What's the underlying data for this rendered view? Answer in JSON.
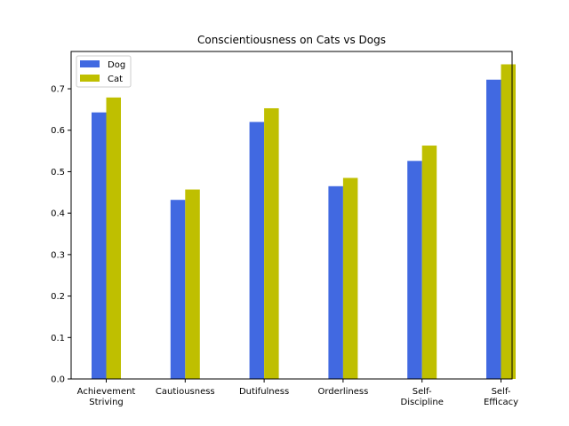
{
  "chart_data": {
    "type": "bar",
    "title": "Conscientiousness on Cats vs Dogs",
    "xlabel": "",
    "ylabel": "",
    "categories": [
      [
        "Achievement",
        "Striving"
      ],
      [
        "Cautiousness"
      ],
      [
        "Dutifulness"
      ],
      [
        "Orderliness"
      ],
      [
        "Self-",
        "Discipline"
      ],
      [
        "Self-",
        "Efficacy"
      ]
    ],
    "series": [
      {
        "name": "Dog",
        "color": "#4169e1",
        "values": [
          0.643,
          0.432,
          0.62,
          0.465,
          0.526,
          0.722
        ]
      },
      {
        "name": "Cat",
        "color": "#bfbf00",
        "values": [
          0.679,
          0.457,
          0.653,
          0.485,
          0.563,
          0.759
        ]
      }
    ],
    "ylim": [
      0,
      0.79
    ],
    "yticks": [
      0.0,
      0.1,
      0.2,
      0.3,
      0.4,
      0.5,
      0.6,
      0.7
    ],
    "ytick_labels": [
      "0.0",
      "0.1",
      "0.2",
      "0.3",
      "0.4",
      "0.5",
      "0.6",
      "0.7"
    ],
    "legend_position": "top-left",
    "grid": false
  }
}
